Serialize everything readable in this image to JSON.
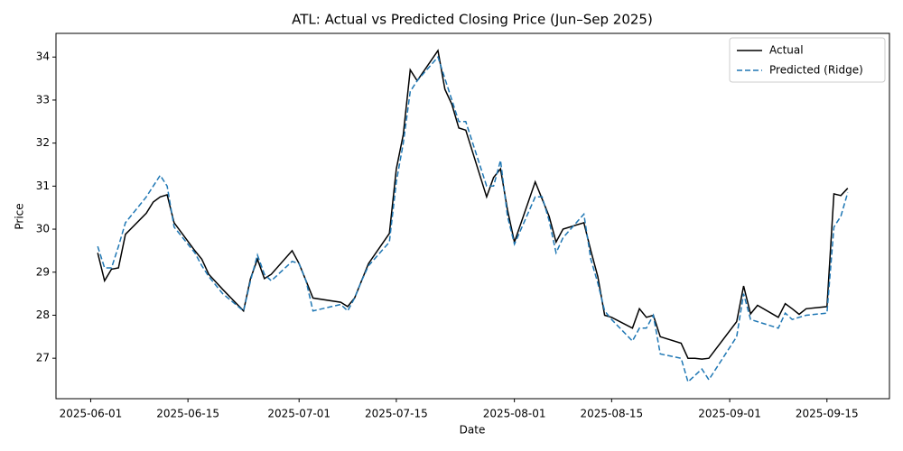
{
  "chart_data": {
    "type": "line",
    "title": "ATL: Actual vs Predicted Closing Price (Jun–Sep 2025)",
    "xlabel": "Date",
    "ylabel": "Price",
    "x": [
      "2025-06-02",
      "2025-06-03",
      "2025-06-04",
      "2025-06-05",
      "2025-06-06",
      "2025-06-09",
      "2025-06-10",
      "2025-06-11",
      "2025-06-12",
      "2025-06-13",
      "2025-06-16",
      "2025-06-17",
      "2025-06-18",
      "2025-06-20",
      "2025-06-23",
      "2025-06-24",
      "2025-06-25",
      "2025-06-26",
      "2025-06-27",
      "2025-06-30",
      "2025-07-01",
      "2025-07-02",
      "2025-07-03",
      "2025-07-07",
      "2025-07-08",
      "2025-07-09",
      "2025-07-10",
      "2025-07-11",
      "2025-07-14",
      "2025-07-15",
      "2025-07-16",
      "2025-07-17",
      "2025-07-18",
      "2025-07-21",
      "2025-07-22",
      "2025-07-23",
      "2025-07-24",
      "2025-07-25",
      "2025-07-28",
      "2025-07-29",
      "2025-07-30",
      "2025-07-31",
      "2025-08-01",
      "2025-08-04",
      "2025-08-05",
      "2025-08-06",
      "2025-08-07",
      "2025-08-08",
      "2025-08-11",
      "2025-08-12",
      "2025-08-13",
      "2025-08-14",
      "2025-08-15",
      "2025-08-18",
      "2025-08-19",
      "2025-08-20",
      "2025-08-21",
      "2025-08-22",
      "2025-08-25",
      "2025-08-26",
      "2025-08-27",
      "2025-08-28",
      "2025-08-29",
      "2025-09-02",
      "2025-09-03",
      "2025-09-04",
      "2025-09-05",
      "2025-09-08",
      "2025-09-09",
      "2025-09-10",
      "2025-09-11",
      "2025-09-12",
      "2025-09-15",
      "2025-09-16",
      "2025-09-17",
      "2025-09-18"
    ],
    "series": [
      {
        "name": "Actual",
        "color": "#000000",
        "dash": false,
        "values": [
          29.45,
          28.8,
          29.07,
          29.1,
          29.88,
          30.37,
          30.63,
          30.75,
          30.8,
          30.15,
          29.5,
          29.3,
          28.95,
          28.6,
          28.1,
          28.85,
          29.3,
          28.85,
          28.95,
          29.5,
          29.2,
          28.8,
          28.4,
          28.3,
          28.2,
          28.4,
          28.8,
          29.2,
          29.9,
          31.4,
          32.2,
          33.7,
          33.45,
          34.15,
          33.25,
          32.9,
          32.35,
          32.3,
          30.75,
          31.2,
          31.4,
          30.45,
          29.7,
          31.1,
          30.7,
          30.3,
          29.7,
          30.0,
          30.15,
          29.5,
          28.9,
          28.0,
          27.95,
          27.7,
          28.15,
          27.95,
          28.0,
          27.5,
          27.35,
          27.0,
          27.0,
          26.98,
          27.0,
          27.85,
          28.68,
          28.03,
          28.23,
          27.95,
          28.27,
          28.15,
          28.02,
          28.15,
          28.2,
          30.82,
          30.78,
          30.95
        ]
      },
      {
        "name": "Predicted (Ridge)",
        "color": "#1f77b4",
        "dash": true,
        "values": [
          29.6,
          29.1,
          29.1,
          29.6,
          30.15,
          30.75,
          31.0,
          31.25,
          31.0,
          30.05,
          29.45,
          29.15,
          28.9,
          28.5,
          28.1,
          28.8,
          29.4,
          28.95,
          28.8,
          29.25,
          29.2,
          28.8,
          28.1,
          28.25,
          28.1,
          28.4,
          28.8,
          29.15,
          29.7,
          31.1,
          32.0,
          33.2,
          33.45,
          34.0,
          33.5,
          33.0,
          32.5,
          32.5,
          31.0,
          31.0,
          31.6,
          30.3,
          29.65,
          30.75,
          30.75,
          30.2,
          29.45,
          29.8,
          30.35,
          29.3,
          28.75,
          28.1,
          27.9,
          27.4,
          27.7,
          27.7,
          28.0,
          27.1,
          27.0,
          26.45,
          26.6,
          26.75,
          26.5,
          27.5,
          28.5,
          27.9,
          27.85,
          27.7,
          28.05,
          27.9,
          27.95,
          28.0,
          28.05,
          30.05,
          30.3,
          30.85
        ]
      }
    ],
    "xlim": [
      "2025-05-27",
      "2025-09-24"
    ],
    "xticks": [
      "2025-06-01",
      "2025-06-15",
      "2025-07-01",
      "2025-07-15",
      "2025-08-01",
      "2025-08-15",
      "2025-09-01",
      "2025-09-15"
    ],
    "ylim": [
      26.06,
      34.55
    ],
    "yticks": [
      27,
      28,
      29,
      30,
      31,
      32,
      33,
      34
    ],
    "grid": false,
    "legend": "upper right"
  }
}
